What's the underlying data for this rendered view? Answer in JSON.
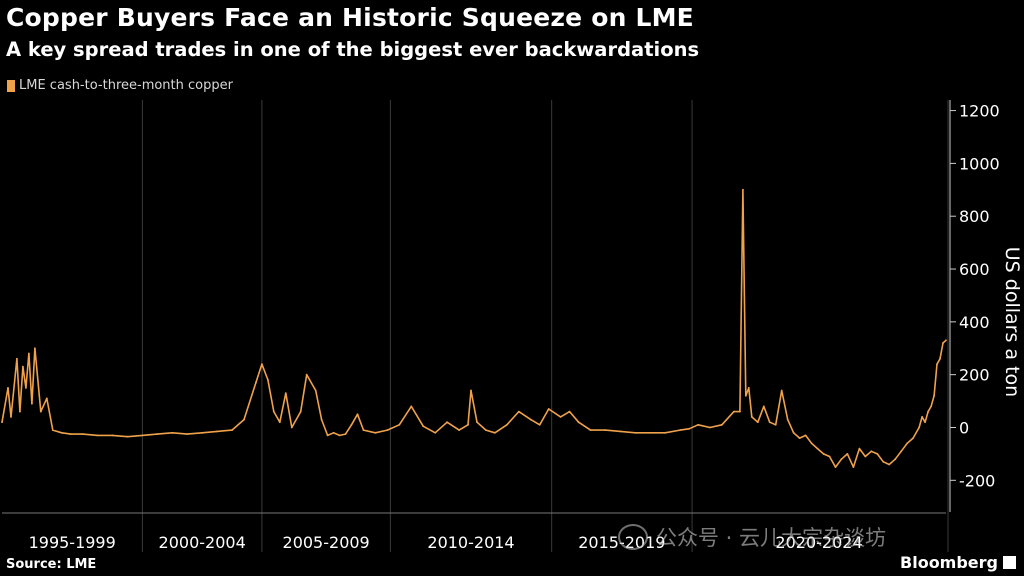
{
  "header": {
    "title": "Copper Buyers Face an Historic Squeeze on LME",
    "subtitle": "A key spread trades in one of the biggest ever backwardations"
  },
  "footer": {
    "source": "Source: LME",
    "brand": "Bloomberg"
  },
  "watermark": {
    "text": "公众号 · 云儿大宗杂谈坊"
  },
  "colors": {
    "background": "#000000",
    "series": "#f0a24b",
    "text": "#ffffff",
    "grid": "#3a3a3a"
  },
  "chart_data": {
    "type": "line",
    "title": "Copper Buyers Face an Historic Squeeze on LME",
    "subtitle": "A key spread trades in one of the biggest ever backwardations",
    "xlabel": "",
    "ylabel": "US dollars a ton",
    "y_axis_side": "right",
    "ylim": [
      -320,
      1240
    ],
    "xlim": [
      1993.3,
      2024.9
    ],
    "yticks": [
      -200,
      0,
      200,
      400,
      600,
      800,
      1000,
      1200
    ],
    "ytick_labels": [
      "-200",
      "0",
      "200",
      "400",
      "600",
      "800",
      "1000",
      "1200"
    ],
    "x_groups": [
      {
        "label": "1995-1999",
        "start": 1993.3,
        "end": 1998.0
      },
      {
        "label": "2000-2004",
        "start": 1998.0,
        "end": 2002.0
      },
      {
        "label": "2005-2009",
        "start": 2002.0,
        "end": 2006.3
      },
      {
        "label": "2010-2014",
        "start": 2006.3,
        "end": 2011.7
      },
      {
        "label": "2015-2019",
        "start": 2011.7,
        "end": 2016.4
      },
      {
        "label": "2020-2024",
        "start": 2016.4,
        "end": 2024.9
      }
    ],
    "grid": true,
    "legend": [
      "LME cash-to-three-month copper"
    ],
    "legend_position": "top-left",
    "series": [
      {
        "name": "LME cash-to-three-month copper",
        "x": [
          1993.3,
          1993.5,
          1993.6,
          1993.8,
          1993.9,
          1994.0,
          1994.1,
          1994.2,
          1994.3,
          1994.4,
          1994.6,
          1994.8,
          1995.0,
          1995.3,
          1995.6,
          1996.0,
          1996.5,
          1997.0,
          1997.5,
          1998.0,
          1998.5,
          1999.0,
          1999.5,
          2000.0,
          2000.5,
          2001.0,
          2001.4,
          2001.8,
          2002.0,
          2002.2,
          2002.4,
          2002.6,
          2002.8,
          2003.0,
          2003.3,
          2003.5,
          2003.8,
          2004.0,
          2004.2,
          2004.4,
          2004.6,
          2004.8,
          2005.0,
          2005.2,
          2005.4,
          2005.8,
          2006.2,
          2006.6,
          2007.0,
          2007.4,
          2007.8,
          2008.2,
          2008.6,
          2008.9,
          2009.0,
          2009.2,
          2009.5,
          2009.8,
          2010.2,
          2010.6,
          2011.0,
          2011.3,
          2011.6,
          2012.0,
          2012.3,
          2012.6,
          2013.0,
          2013.5,
          2014.0,
          2014.5,
          2015.0,
          2015.5,
          2016.0,
          2016.3,
          2016.6,
          2017.0,
          2017.4,
          2017.8,
          2018.0,
          2018.1,
          2018.2,
          2018.3,
          2018.4,
          2018.6,
          2018.8,
          2019.0,
          2019.2,
          2019.4,
          2019.6,
          2019.8,
          2020.0,
          2020.2,
          2020.4,
          2020.6,
          2020.8,
          2021.0,
          2021.2,
          2021.4,
          2021.6,
          2021.8,
          2022.0,
          2022.2,
          2022.4,
          2022.6,
          2022.8,
          2023.0,
          2023.2,
          2023.4,
          2023.6,
          2023.8,
          2024.0,
          2024.1,
          2024.2,
          2024.3,
          2024.4,
          2024.5,
          2024.6,
          2024.7,
          2024.8,
          2024.9
        ],
        "values": [
          20,
          150,
          40,
          260,
          60,
          230,
          150,
          280,
          90,
          300,
          60,
          110,
          -10,
          -20,
          -25,
          -25,
          -30,
          -30,
          -35,
          -30,
          -25,
          -20,
          -25,
          -20,
          -15,
          -10,
          30,
          170,
          240,
          180,
          60,
          20,
          130,
          0,
          60,
          200,
          140,
          30,
          -30,
          -20,
          -30,
          -25,
          10,
          50,
          -10,
          -20,
          -10,
          10,
          80,
          5,
          -20,
          20,
          -10,
          10,
          140,
          20,
          -10,
          -20,
          10,
          60,
          30,
          10,
          70,
          40,
          60,
          20,
          -10,
          -10,
          -15,
          -20,
          -20,
          -20,
          -10,
          -5,
          10,
          0,
          10,
          60,
          60,
          900,
          120,
          150,
          40,
          20,
          80,
          20,
          10,
          140,
          30,
          -20,
          -40,
          -30,
          -60,
          -80,
          -100,
          -110,
          -150,
          -120,
          -100,
          -150,
          -80,
          -110,
          -90,
          -100,
          -130,
          -140,
          -120,
          -90,
          -60,
          -40,
          0,
          40,
          20,
          60,
          80,
          120,
          240,
          260,
          320,
          330
        ]
      }
    ]
  }
}
